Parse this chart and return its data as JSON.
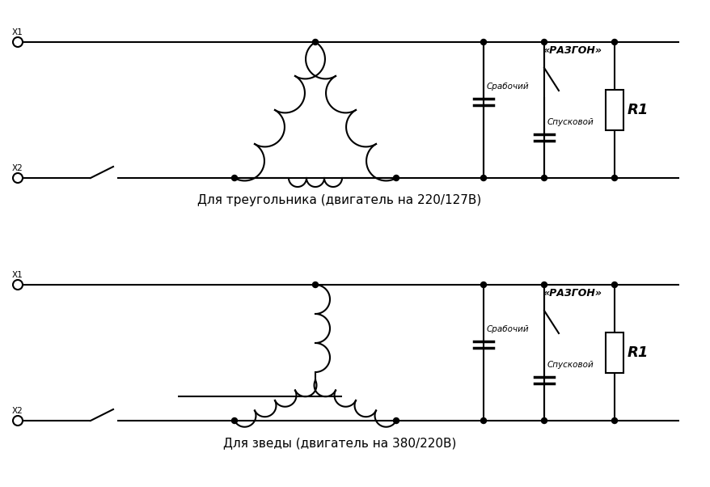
{
  "bg_color": "#ffffff",
  "line_color": "#000000",
  "title1": "Для треугольника (двигатель на 220/127В)",
  "title2": "Для зведы (двигатель на 380/220В)",
  "label_razgon": "«РАЗГОН»",
  "label_rabochiy": "Срабочий",
  "label_spuskovoy": "Спусковой",
  "label_R1": "R1",
  "label_X1": "X1",
  "label_X2": "X2"
}
